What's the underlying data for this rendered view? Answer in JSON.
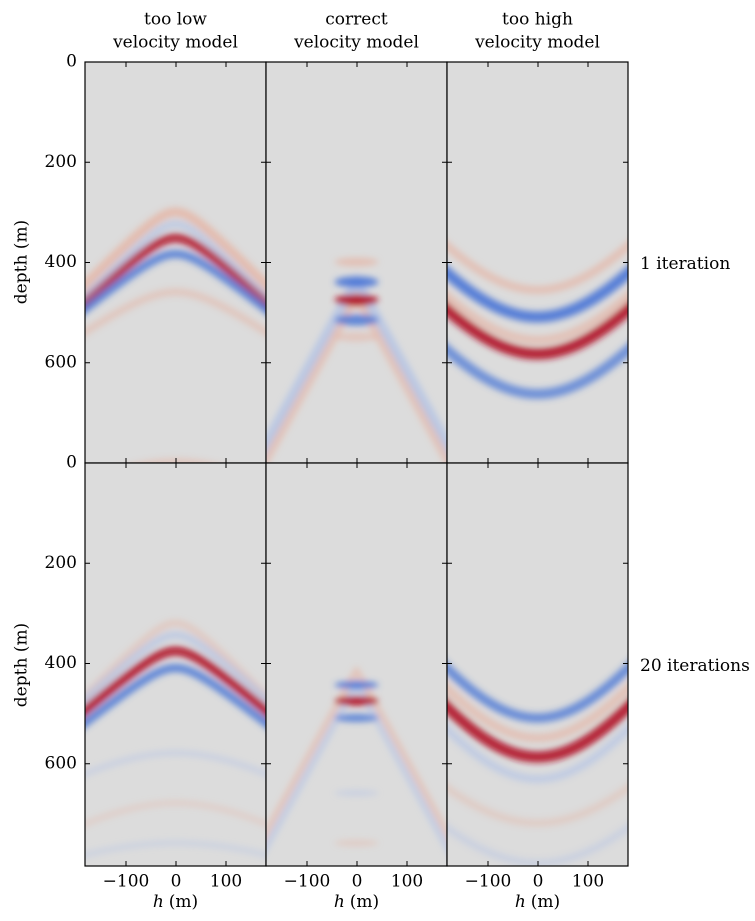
{
  "chart_data": {
    "type": "image-grid",
    "column_titles": [
      [
        "too low",
        "velocity model"
      ],
      [
        "correct",
        "velocity model"
      ],
      [
        "too high",
        "velocity model"
      ]
    ],
    "row_labels": [
      "1 iteration",
      "20 iterations"
    ],
    "ylabel": "depth (m)",
    "xlabel_var": "h",
    "xlabel_unit": "(m)",
    "xlim": [
      -182,
      180
    ],
    "xticks": [
      {
        "value": -100,
        "label": "−100"
      },
      0,
      100
    ],
    "ylim": [
      800,
      0
    ],
    "yticks": [
      0,
      200,
      400,
      600
    ]
  }
}
